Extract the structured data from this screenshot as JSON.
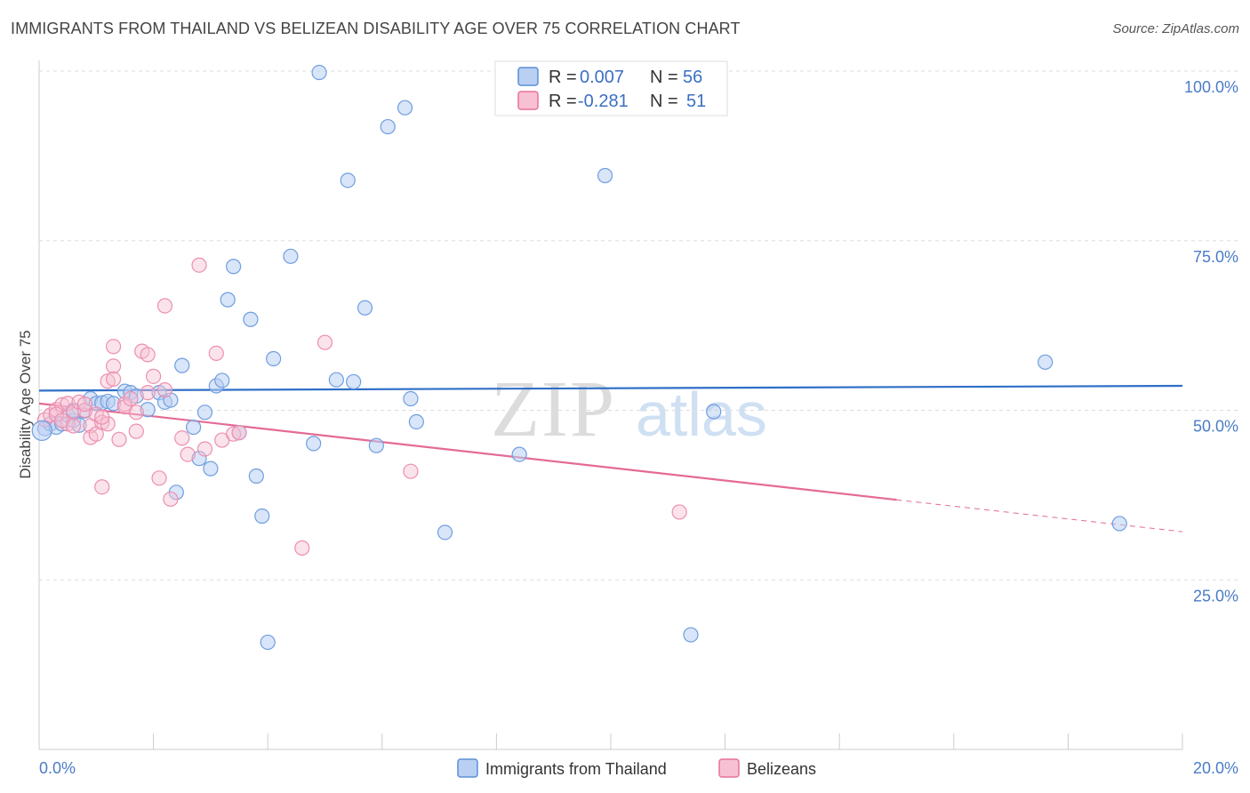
{
  "title": "IMMIGRANTS FROM THAILAND VS BELIZEAN DISABILITY AGE OVER 75 CORRELATION CHART",
  "source": "Source: ZipAtlas.com",
  "watermark": {
    "zip": "ZIP",
    "atlas": "atlas"
  },
  "colors": {
    "blue": "#5b8fd8",
    "blue_fill": "#b9d0f2",
    "pink": "#e8719b",
    "pink_fill": "#f7c1d3",
    "axis_text": "#4a7cc6",
    "grid": "#dddddd"
  },
  "legend": {
    "r_label": "R =",
    "n_label": "N =",
    "entries": [
      {
        "r": "0.007",
        "n": "56"
      },
      {
        "r": "-0.281",
        "n": "51"
      }
    ]
  },
  "chart_data": {
    "type": "scatter",
    "title": "IMMIGRANTS FROM THAILAND VS BELIZEAN DISABILITY AGE OVER 75 CORRELATION CHART",
    "xlabel": "",
    "ylabel": "Disability Age Over 75",
    "xlim": [
      0,
      20
    ],
    "ylim": [
      0,
      103
    ],
    "x_tick_labels": [
      "0.0%",
      "20.0%"
    ],
    "y_ticks": [
      25,
      50,
      75,
      100
    ],
    "y_tick_labels": [
      "25.0%",
      "50.0%",
      "75.0%",
      "100.0%"
    ],
    "grid": true,
    "legend_position": "top-center",
    "series": [
      {
        "name": "Immigrants from Thailand",
        "color": "#5b8fd8",
        "trend": {
          "x": [
            0,
            20
          ],
          "y": [
            52.9,
            53.6
          ]
        },
        "points": [
          [
            0.1,
            47.3
          ],
          [
            0.2,
            48.0
          ],
          [
            0.3,
            47.5
          ],
          [
            0.4,
            48.0
          ],
          [
            0.5,
            49.3
          ],
          [
            0.6,
            48.5
          ],
          [
            0.7,
            47.8
          ],
          [
            0.8,
            49.9
          ],
          [
            0.9,
            51.7
          ],
          [
            1.0,
            51.0
          ],
          [
            1.1,
            51.1
          ],
          [
            1.2,
            51.3
          ],
          [
            1.3,
            51.0
          ],
          [
            1.5,
            52.8
          ],
          [
            1.6,
            52.6
          ],
          [
            1.7,
            52.1
          ],
          [
            1.9,
            50.1
          ],
          [
            2.1,
            52.6
          ],
          [
            2.2,
            51.2
          ],
          [
            2.3,
            51.5
          ],
          [
            2.4,
            37.9
          ],
          [
            2.5,
            56.6
          ],
          [
            2.7,
            47.5
          ],
          [
            2.8,
            42.9
          ],
          [
            2.9,
            49.7
          ],
          [
            3.0,
            41.4
          ],
          [
            3.1,
            53.6
          ],
          [
            3.2,
            54.4
          ],
          [
            3.3,
            66.3
          ],
          [
            3.4,
            71.2
          ],
          [
            3.5,
            46.7
          ],
          [
            3.7,
            63.4
          ],
          [
            3.8,
            40.3
          ],
          [
            3.9,
            34.4
          ],
          [
            4.0,
            15.8
          ],
          [
            4.1,
            57.6
          ],
          [
            4.4,
            72.7
          ],
          [
            4.8,
            45.1
          ],
          [
            4.9,
            99.8
          ],
          [
            5.2,
            54.5
          ],
          [
            5.4,
            83.9
          ],
          [
            5.5,
            54.2
          ],
          [
            5.7,
            65.1
          ],
          [
            5.9,
            44.8
          ],
          [
            6.1,
            91.8
          ],
          [
            6.4,
            94.6
          ],
          [
            6.5,
            51.7
          ],
          [
            6.6,
            48.3
          ],
          [
            7.1,
            32.0
          ],
          [
            8.4,
            43.5
          ],
          [
            9.9,
            84.6
          ],
          [
            11.4,
            16.9
          ],
          [
            11.8,
            49.8
          ],
          [
            17.6,
            57.1
          ],
          [
            18.9,
            33.3
          ],
          [
            0.6,
            50.0
          ]
        ]
      },
      {
        "name": "Belizeans",
        "color": "#e8719b",
        "trend": {
          "x": [
            0,
            15
          ],
          "y": [
            51.0,
            36.8
          ]
        },
        "trend_dashed": {
          "x": [
            15,
            20
          ],
          "y": [
            36.8,
            32.1
          ]
        },
        "points": [
          [
            0.1,
            48.6
          ],
          [
            0.2,
            49.3
          ],
          [
            0.3,
            50.1
          ],
          [
            0.4,
            50.8
          ],
          [
            0.5,
            48.0
          ],
          [
            0.5,
            51.0
          ],
          [
            0.6,
            49.8
          ],
          [
            0.7,
            51.2
          ],
          [
            0.8,
            50.0
          ],
          [
            0.8,
            50.9
          ],
          [
            0.9,
            47.7
          ],
          [
            0.9,
            46.0
          ],
          [
            1.0,
            49.4
          ],
          [
            1.0,
            46.5
          ],
          [
            1.1,
            38.7
          ],
          [
            1.1,
            48.2
          ],
          [
            1.2,
            48.0
          ],
          [
            1.2,
            54.3
          ],
          [
            1.3,
            56.5
          ],
          [
            1.3,
            59.4
          ],
          [
            1.3,
            54.6
          ],
          [
            1.4,
            45.7
          ],
          [
            1.5,
            50.9
          ],
          [
            1.5,
            50.5
          ],
          [
            1.6,
            51.7
          ],
          [
            1.7,
            49.7
          ],
          [
            1.7,
            46.9
          ],
          [
            1.8,
            58.7
          ],
          [
            1.9,
            58.2
          ],
          [
            1.9,
            52.6
          ],
          [
            2.0,
            55.0
          ],
          [
            2.1,
            40.0
          ],
          [
            2.2,
            65.4
          ],
          [
            2.2,
            53.0
          ],
          [
            2.3,
            36.9
          ],
          [
            2.5,
            45.9
          ],
          [
            2.6,
            43.5
          ],
          [
            2.8,
            71.4
          ],
          [
            2.9,
            44.3
          ],
          [
            3.1,
            58.4
          ],
          [
            3.2,
            45.6
          ],
          [
            3.4,
            46.5
          ],
          [
            3.5,
            46.7
          ],
          [
            4.6,
            29.7
          ],
          [
            5.0,
            60.0
          ],
          [
            6.5,
            41.0
          ],
          [
            11.2,
            35.0
          ],
          [
            0.3,
            49.4
          ],
          [
            0.4,
            48.5
          ],
          [
            0.6,
            47.7
          ],
          [
            1.1,
            49.0
          ]
        ]
      }
    ]
  },
  "bottom_legend": [
    {
      "label": "Immigrants from Thailand"
    },
    {
      "label": "Belizeans"
    }
  ]
}
